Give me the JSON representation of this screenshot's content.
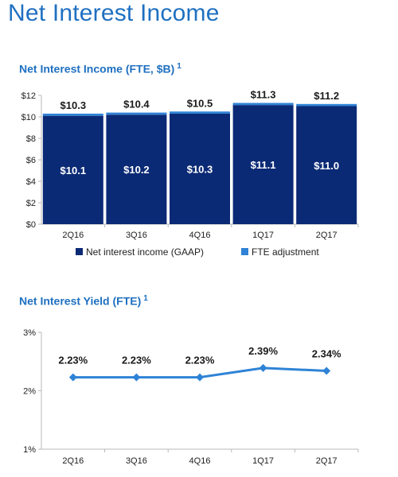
{
  "page": {
    "title": "Net Interest Income"
  },
  "colors": {
    "title": "#1f70c1",
    "gaap": "#0b2a75",
    "fte": "#2f83d6",
    "line": "#2f83d6",
    "axis": "#b8b8b8"
  },
  "chart_data": [
    {
      "type": "bar",
      "stacked": true,
      "title": "Net Interest Income (FTE, $B)",
      "title_footnote": "1",
      "categories": [
        "2Q16",
        "3Q16",
        "4Q16",
        "1Q17",
        "2Q17"
      ],
      "series": [
        {
          "name": "Net interest income (GAAP)",
          "values": [
            10.1,
            10.2,
            10.3,
            11.1,
            11.0
          ],
          "labels": [
            "$10.1",
            "$10.2",
            "$10.3",
            "$11.1",
            "$11.0"
          ]
        },
        {
          "name": "FTE adjustment",
          "values": [
            0.2,
            0.2,
            0.2,
            0.2,
            0.2
          ]
        }
      ],
      "total_labels": [
        "$10.3",
        "$10.4",
        "$10.5",
        "$11.3",
        "$11.2"
      ],
      "ylim": [
        0,
        12
      ],
      "yticks": [
        0,
        2,
        4,
        6,
        8,
        10,
        12
      ],
      "ytick_labels": [
        "$0",
        "$2",
        "$4",
        "$6",
        "$8",
        "$10",
        "$12"
      ],
      "grid": false,
      "legend": "bottom"
    },
    {
      "type": "line",
      "title": "Net Interest Yield (FTE)",
      "title_footnote": "1",
      "categories": [
        "2Q16",
        "3Q16",
        "4Q16",
        "1Q17",
        "2Q17"
      ],
      "values": [
        2.23,
        2.23,
        2.23,
        2.39,
        2.34
      ],
      "value_labels": [
        "2.23%",
        "2.23%",
        "2.23%",
        "2.39%",
        "2.34%"
      ],
      "ylim": [
        1,
        3
      ],
      "yticks": [
        1,
        2,
        3
      ],
      "ytick_labels": [
        "1%",
        "2%",
        "3%"
      ],
      "grid": false,
      "legend": "none"
    }
  ]
}
